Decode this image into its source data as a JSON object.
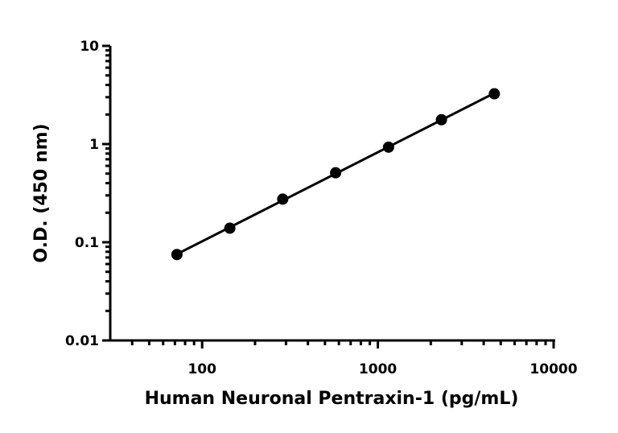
{
  "chart_data": {
    "type": "scatter",
    "xlabel": "Human Neuronal Pentraxin-1 (pg/mL)",
    "ylabel": "O.D. (450 nm)",
    "xscale": "log",
    "yscale": "log",
    "xlim": [
      30,
      10000
    ],
    "ylim": [
      0.01,
      10
    ],
    "xticks": [
      100,
      1000,
      10000
    ],
    "xtick_labels": [
      "100",
      "1000",
      "10000"
    ],
    "yticks": [
      0.01,
      0.1,
      1,
      10
    ],
    "ytick_labels": [
      "0.01",
      "0.1",
      "1",
      "10"
    ],
    "grid": false,
    "fit_line": true,
    "series": [
      {
        "x": [
          71.9,
          143.75,
          287.5,
          575,
          1150,
          2300,
          4600
        ],
        "y": [
          0.075,
          0.139,
          0.275,
          0.51,
          0.93,
          1.77,
          3.25
        ]
      }
    ],
    "color": "#000000"
  }
}
